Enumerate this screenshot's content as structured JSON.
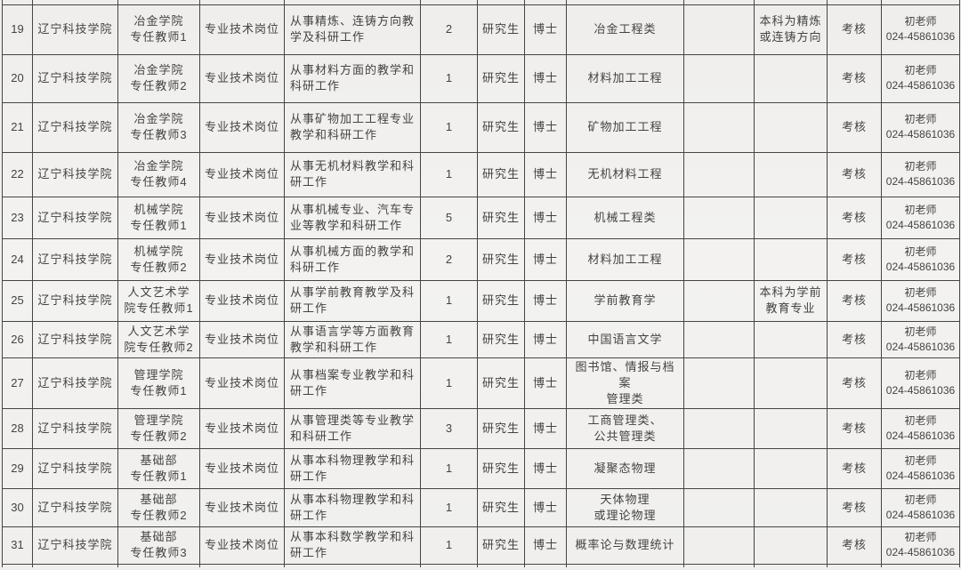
{
  "table": {
    "rows": [
      {
        "seq": "19",
        "school": "辽宁科技学院",
        "position": "冶金学院\n专任教师1",
        "post_type": "专业技术岗位",
        "duties": "从事精炼、连铸方向教学及科研工作",
        "count": "2",
        "education": "研究生",
        "degree": "博士",
        "major": "冶金工程类",
        "blank": "",
        "remark": "本科为精炼\n或连铸方向",
        "assessment": "考核",
        "contact": "初老师\n024-45861036"
      },
      {
        "seq": "20",
        "school": "辽宁科技学院",
        "position": "冶金学院\n专任教师2",
        "post_type": "专业技术岗位",
        "duties": "从事材料方面的教学和科研工作",
        "count": "1",
        "education": "研究生",
        "degree": "博士",
        "major": "材料加工工程",
        "blank": "",
        "remark": "",
        "assessment": "考核",
        "contact": "初老师\n024-45861036"
      },
      {
        "seq": "21",
        "school": "辽宁科技学院",
        "position": "冶金学院\n专任教师3",
        "post_type": "专业技术岗位",
        "duties": "从事矿物加工工程专业教学和科研工作",
        "count": "1",
        "education": "研究生",
        "degree": "博士",
        "major": "矿物加工工程",
        "blank": "",
        "remark": "",
        "assessment": "考核",
        "contact": "初老师\n024-45861036"
      },
      {
        "seq": "22",
        "school": "辽宁科技学院",
        "position": "冶金学院\n专任教师4",
        "post_type": "专业技术岗位",
        "duties": "从事无机材料教学和科研工作",
        "count": "1",
        "education": "研究生",
        "degree": "博士",
        "major": "无机材料工程",
        "blank": "",
        "remark": "",
        "assessment": "考核",
        "contact": "初老师\n024-45861036"
      },
      {
        "seq": "23",
        "school": "辽宁科技学院",
        "position": "机械学院\n专任教师1",
        "post_type": "专业技术岗位",
        "duties": "从事机械专业、汽车专业等教学和科研工作",
        "count": "5",
        "education": "研究生",
        "degree": "博士",
        "major": "机械工程类",
        "blank": "",
        "remark": "",
        "assessment": "考核",
        "contact": "初老师\n024-45861036"
      },
      {
        "seq": "24",
        "school": "辽宁科技学院",
        "position": "机械学院\n专任教师2",
        "post_type": "专业技术岗位",
        "duties": "从事机械方面的教学和科研工作",
        "count": "2",
        "education": "研究生",
        "degree": "博士",
        "major": "材料加工工程",
        "blank": "",
        "remark": "",
        "assessment": "考核",
        "contact": "初老师\n024-45861036"
      },
      {
        "seq": "25",
        "school": "辽宁科技学院",
        "position": "人文艺术学\n院专任教师1",
        "post_type": "专业技术岗位",
        "duties": "从事学前教育教学及科研工作",
        "count": "1",
        "education": "研究生",
        "degree": "博士",
        "major": "学前教育学",
        "blank": "",
        "remark": "本科为学前\n教育专业",
        "assessment": "考核",
        "contact": "初老师\n024-45861036"
      },
      {
        "seq": "26",
        "school": "辽宁科技学院",
        "position": "人文艺术学\n院专任教师2",
        "post_type": "专业技术岗位",
        "duties": "从事语言学等方面教育教学和科研工作",
        "count": "1",
        "education": "研究生",
        "degree": "博士",
        "major": "中国语言文学",
        "blank": "",
        "remark": "",
        "assessment": "考核",
        "contact": "初老师\n024-45861036"
      },
      {
        "seq": "27",
        "school": "辽宁科技学院",
        "position": "管理学院\n专任教师1",
        "post_type": "专业技术岗位",
        "duties": "从事档案专业教学和科研工作",
        "count": "1",
        "education": "研究生",
        "degree": "博士",
        "major": "图书馆、情报与档案\n管理类",
        "blank": "",
        "remark": "",
        "assessment": "考核",
        "contact": "初老师\n024-45861036"
      },
      {
        "seq": "28",
        "school": "辽宁科技学院",
        "position": "管理学院\n专任教师2",
        "post_type": "专业技术岗位",
        "duties": "从事管理类等专业教学和科研工作",
        "count": "3",
        "education": "研究生",
        "degree": "博士",
        "major": "工商管理类、\n公共管理类",
        "blank": "",
        "remark": "",
        "assessment": "考核",
        "contact": "初老师\n024-45861036"
      },
      {
        "seq": "29",
        "school": "辽宁科技学院",
        "position": "基础部\n专任教师1",
        "post_type": "专业技术岗位",
        "duties": "从事本科物理教学和科研工作",
        "count": "1",
        "education": "研究生",
        "degree": "博士",
        "major": "凝聚态物理",
        "blank": "",
        "remark": "",
        "assessment": "考核",
        "contact": "初老师\n024-45861036"
      },
      {
        "seq": "30",
        "school": "辽宁科技学院",
        "position": "基础部\n专任教师2",
        "post_type": "专业技术岗位",
        "duties": "从事本科物理教学和科研工作",
        "count": "1",
        "education": "研究生",
        "degree": "博士",
        "major": "天体物理\n或理论物理",
        "blank": "",
        "remark": "",
        "assessment": "考核",
        "contact": "初老师\n024-45861036"
      },
      {
        "seq": "31",
        "school": "辽宁科技学院",
        "position": "基础部\n专任教师3",
        "post_type": "专业技术岗位",
        "duties": "从事本科数学教学和科研工作",
        "count": "1",
        "education": "研究生",
        "degree": "博士",
        "major": "概率论与数理统计",
        "blank": "",
        "remark": "",
        "assessment": "考核",
        "contact": "初老师\n024-45861036"
      }
    ]
  }
}
